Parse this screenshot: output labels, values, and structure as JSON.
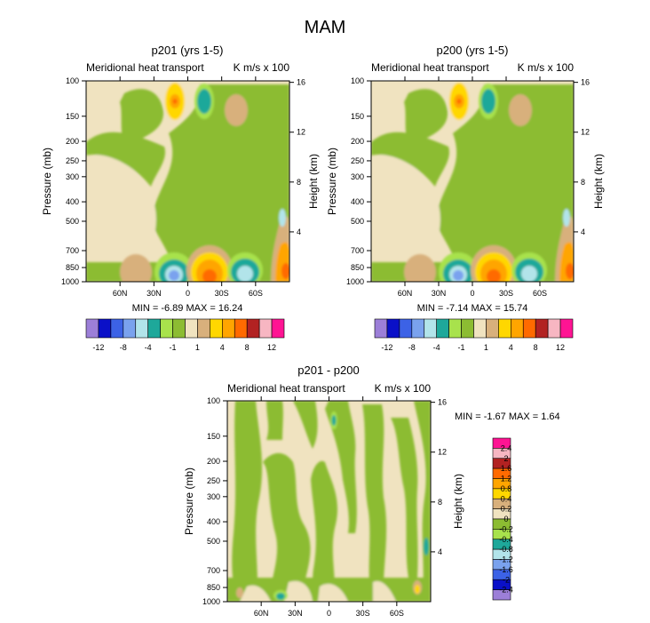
{
  "figure_title": "MAM",
  "colors": {
    "bg": "#ffffff",
    "base_beige": "#f0e3c0",
    "base_green": "#9acd3a"
  },
  "chart_data": [
    {
      "type": "heatmap",
      "title": "p201 (yrs 1-5)",
      "subtitle": "Meridional heat transport",
      "units": "K m/s x 100",
      "ylabel": "Pressure (mb)",
      "ylabel_right": "Height (km)",
      "x_ticks": [
        "60N",
        "30N",
        "0",
        "30S",
        "60S"
      ],
      "y_ticks": [
        "100",
        "150",
        "200",
        "250",
        "300",
        "400",
        "500",
        "700",
        "850",
        "1000"
      ],
      "y_ticks_right": [
        "16",
        "12",
        "8",
        "4"
      ],
      "stats": "MIN = -6.89  MAX = 16.24",
      "min": -6.89,
      "max": 16.24,
      "colorbar": {
        "orientation": "horizontal",
        "labels": [
          "-12",
          "-8",
          "-4",
          "-1",
          "1",
          "4",
          "8",
          "12"
        ],
        "colors": [
          "#9c7fd8",
          "#0a10c8",
          "#3c62e6",
          "#7aa2ee",
          "#b2e4ea",
          "#1ea89a",
          "#a8e24c",
          "#8cbc32",
          "#f0e3c0",
          "#d8b07c",
          "#ffd700",
          "#ffa500",
          "#ff6a00",
          "#b22222",
          "#f7b6c2",
          "#ff1493"
        ]
      }
    },
    {
      "type": "heatmap",
      "title": "p200 (yrs 1-5)",
      "subtitle": "Meridional heat transport",
      "units": "K m/s x 100",
      "ylabel": "Pressure (mb)",
      "ylabel_right": "Height (km)",
      "x_ticks": [
        "60N",
        "30N",
        "0",
        "30S",
        "60S"
      ],
      "y_ticks": [
        "100",
        "150",
        "200",
        "250",
        "300",
        "400",
        "500",
        "700",
        "850",
        "1000"
      ],
      "y_ticks_right": [
        "16",
        "12",
        "8",
        "4"
      ],
      "stats": "MIN = -7.14  MAX = 15.74",
      "min": -7.14,
      "max": 15.74,
      "colorbar": {
        "orientation": "horizontal",
        "labels": [
          "-12",
          "-8",
          "-4",
          "-1",
          "1",
          "4",
          "8",
          "12"
        ],
        "colors": [
          "#9c7fd8",
          "#0a10c8",
          "#3c62e6",
          "#7aa2ee",
          "#b2e4ea",
          "#1ea89a",
          "#a8e24c",
          "#8cbc32",
          "#f0e3c0",
          "#d8b07c",
          "#ffd700",
          "#ffa500",
          "#ff6a00",
          "#b22222",
          "#f7b6c2",
          "#ff1493"
        ]
      }
    },
    {
      "type": "heatmap",
      "title": "p201 - p200",
      "subtitle": "Meridional heat transport",
      "units": "K m/s x 100",
      "ylabel": "Pressure (mb)",
      "ylabel_right": "Height (km)",
      "x_ticks": [
        "60N",
        "30N",
        "0",
        "30S",
        "60S"
      ],
      "y_ticks": [
        "100",
        "150",
        "200",
        "250",
        "300",
        "400",
        "500",
        "700",
        "850",
        "1000"
      ],
      "y_ticks_right": [
        "16",
        "12",
        "8",
        "4"
      ],
      "stats": "MIN = -1.67  MAX =  1.64",
      "min": -1.67,
      "max": 1.64,
      "colorbar": {
        "orientation": "vertical",
        "labels": [
          "2.4",
          "2",
          "1.6",
          "1.2",
          "0.8",
          "0.4",
          "0.2",
          "0",
          "-0.2",
          "-0.4",
          "-0.8",
          "-1.2",
          "-1.6",
          "-2",
          "-2.4"
        ],
        "colors": [
          "#ff1493",
          "#f7b6c2",
          "#b22222",
          "#ff6a00",
          "#ffa500",
          "#ffd700",
          "#d8b07c",
          "#f0e3c0",
          "#8cbc32",
          "#a8e24c",
          "#1ea89a",
          "#b2e4ea",
          "#7aa2ee",
          "#3c62e6",
          "#0a10c8",
          "#9c7fd8"
        ]
      }
    }
  ]
}
